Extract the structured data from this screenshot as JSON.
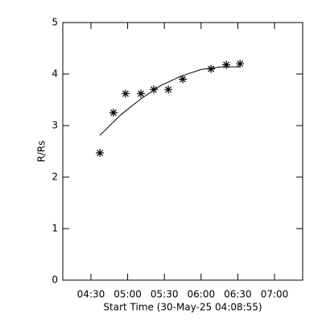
{
  "chart_data": {
    "type": "scatter",
    "x_label": "Start Time (30-May-25 04:08:55)",
    "y_label": "R/Rs",
    "xlim": [
      247,
      443
    ],
    "ylim": [
      0,
      5
    ],
    "xticks": [
      {
        "value": 270,
        "label": "04:30"
      },
      {
        "value": 300,
        "label": "05:00"
      },
      {
        "value": 330,
        "label": "05:30"
      },
      {
        "value": 360,
        "label": "06:00"
      },
      {
        "value": 390,
        "label": "06:30"
      },
      {
        "value": 420,
        "label": "07:00"
      }
    ],
    "yticks": [
      0,
      1,
      2,
      3,
      4,
      5
    ],
    "series": [
      {
        "mode": "markers",
        "marker": "asterisk",
        "color": "#000000",
        "x": [
          277.3,
          288.4,
          298.3,
          310.8,
          321.3,
          333.2,
          345.0,
          368.1,
          380.6,
          391.8
        ],
        "values": [
          2.47,
          3.25,
          3.62,
          3.62,
          3.7,
          3.7,
          3.9,
          4.1,
          4.18,
          4.2
        ]
      },
      {
        "mode": "line",
        "color": "#000000",
        "x": [
          277.3,
          294.4,
          310.8,
          327.3,
          343.7,
          360.2,
          376.6,
          391.8
        ],
        "values": [
          2.81,
          3.21,
          3.52,
          3.78,
          3.96,
          4.09,
          4.14,
          4.14
        ]
      }
    ]
  }
}
